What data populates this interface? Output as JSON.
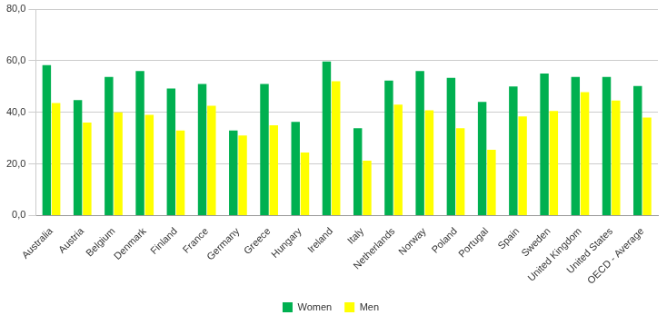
{
  "chart_data": {
    "type": "bar",
    "categories": [
      "Australia",
      "Austria",
      "Belgium",
      "Denmark",
      "Finland",
      "France",
      "Germany",
      "Greece",
      "Hungary",
      "Ireland",
      "Italy",
      "Netherlands",
      "Norway",
      "Poland",
      "Portugal",
      "Spain",
      "Sweden",
      "United Kingdom",
      "United States",
      "OECD - Average"
    ],
    "series": [
      {
        "name": "Women",
        "color": "#00b050",
        "values": [
          58.3,
          44.7,
          53.7,
          56.0,
          49.2,
          51.0,
          33.0,
          51.0,
          36.3,
          59.7,
          33.8,
          52.3,
          56.0,
          53.4,
          44.0,
          50.0,
          55.0,
          53.7,
          53.7,
          50.2
        ]
      },
      {
        "name": "Men",
        "color": "#ffff00",
        "values": [
          43.6,
          36.0,
          40.0,
          39.0,
          33.0,
          42.5,
          31.0,
          35.0,
          24.4,
          52.0,
          21.3,
          43.0,
          40.8,
          33.8,
          25.5,
          38.4,
          40.5,
          47.8,
          44.6,
          38.0
        ]
      }
    ],
    "ylim": [
      0,
      80
    ],
    "yticks": [
      {
        "value": 0,
        "label": "0,0"
      },
      {
        "value": 20,
        "label": "20,0"
      },
      {
        "value": 40,
        "label": "40,0"
      },
      {
        "value": 60,
        "label": "60,0"
      },
      {
        "value": 80,
        "label": "80,0"
      }
    ],
    "grid": true,
    "legend": "bottom"
  }
}
